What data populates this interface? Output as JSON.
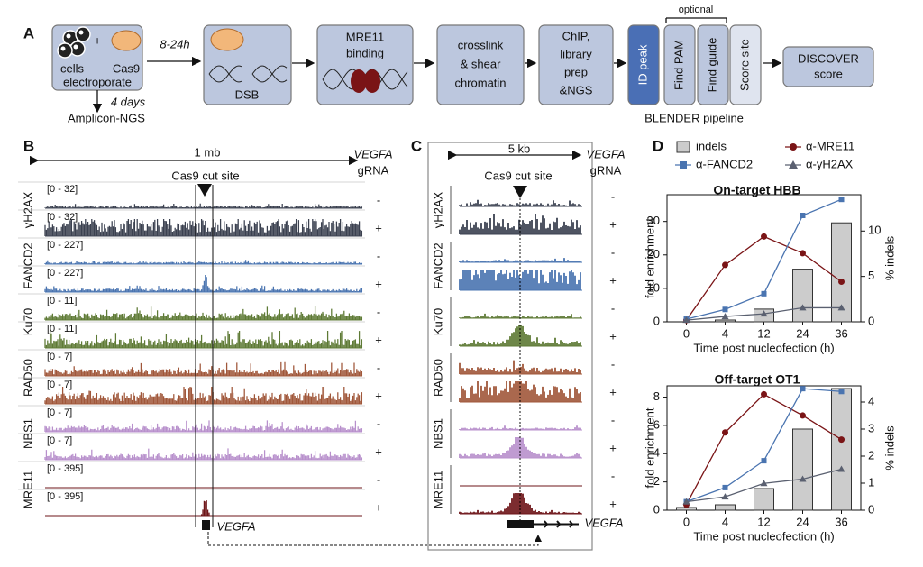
{
  "panel_a": {
    "label": "A",
    "cells": "cells",
    "plus": "+",
    "cas9": "Cas9",
    "electroporate": "electroporate",
    "time": "8-24h",
    "days": "4 days",
    "amplicon": "Amplicon-NGS",
    "dsb": "DSB",
    "mre11": [
      "MRE11",
      "binding"
    ],
    "crosslink": [
      "crosslink",
      "& shear",
      "chromatin"
    ],
    "chip": [
      "ChIP,",
      "library",
      "prep",
      "&NGS"
    ],
    "pipeline": [
      "ID peak",
      "Find PAM",
      "Find guide",
      "Score site"
    ],
    "optional": "optional",
    "blender": "BLENDER pipeline",
    "discover": [
      "DISCOVER",
      "score"
    ]
  },
  "panel_b": {
    "label": "B",
    "scale": "1 mb",
    "gene": "VEGFA",
    "grna": "gRNA",
    "cut": "Cas9 cut site",
    "gene_label": "VEGFA",
    "tracks": [
      {
        "name": "γH2AX",
        "color": "#3b4150",
        "rows": [
          {
            "range": "[0 - 32]",
            "sign": "-"
          },
          {
            "range": "[0 - 32]",
            "sign": "+"
          }
        ]
      },
      {
        "name": "FANCD2",
        "color": "#4a74b0",
        "rows": [
          {
            "range": "[0 - 227]",
            "sign": "-"
          },
          {
            "range": "[0 - 227]",
            "sign": "+"
          }
        ]
      },
      {
        "name": "Ku70",
        "color": "#5e7a35",
        "rows": [
          {
            "range": "[0 - 11]",
            "sign": "-"
          },
          {
            "range": "[0 - 11]",
            "sign": "+"
          }
        ]
      },
      {
        "name": "RAD50",
        "color": "#a0573a",
        "rows": [
          {
            "range": "[0 - 7]",
            "sign": "-"
          },
          {
            "range": "[0 - 7]",
            "sign": "+"
          }
        ]
      },
      {
        "name": "NBS1",
        "color": "#b890cc",
        "rows": [
          {
            "range": "[0 - 7]",
            "sign": "-"
          },
          {
            "range": "[0 - 7]",
            "sign": "+"
          }
        ]
      },
      {
        "name": "MRE11",
        "color": "#6e1518",
        "rows": [
          {
            "range": "[0 - 395]",
            "sign": "-"
          },
          {
            "range": "[0 - 395]",
            "sign": "+"
          }
        ]
      }
    ]
  },
  "panel_c": {
    "label": "C",
    "scale": "5 kb",
    "gene": "VEGFA",
    "grna": "gRNA",
    "cut": "Cas9 cut site",
    "gene_label": "VEGFA",
    "tracks": [
      {
        "name": "γH2AX",
        "color": "#3b4150",
        "signs": [
          "-",
          "+"
        ]
      },
      {
        "name": "FANCD2",
        "color": "#4a74b0",
        "signs": [
          "-",
          "+"
        ]
      },
      {
        "name": "Ku70",
        "color": "#5e7a35",
        "signs": [
          "-",
          "+"
        ]
      },
      {
        "name": "RAD50",
        "color": "#a0573a",
        "signs": [
          "-",
          "+"
        ]
      },
      {
        "name": "NBS1",
        "color": "#b890cc",
        "signs": [
          "-",
          "+"
        ]
      },
      {
        "name": "MRE11",
        "color": "#6e1518",
        "signs": [
          "-",
          "+"
        ]
      }
    ]
  },
  "panel_d": {
    "label": "D"
  },
  "chart_data": [
    {
      "type": "bar-line",
      "title": "On-target HBB",
      "ylabel": "fold enrichment",
      "y2label": "% indels",
      "xlabel": "Time post nucleofection (h)",
      "categories": [
        "0",
        "4",
        "12",
        "24",
        "36"
      ],
      "ylim": [
        0,
        38
      ],
      "yticks": [
        0,
        10,
        20,
        30
      ],
      "y2lim": [
        0,
        14
      ],
      "y2ticks": [
        0,
        5,
        10
      ],
      "series": [
        {
          "name": "indels",
          "color": "#cccccc",
          "marker": "bar",
          "axis": "y2",
          "values": [
            0,
            0.2,
            1.4,
            5.8,
            10.9
          ]
        },
        {
          "name": "α-MRE11",
          "color": "#7a1416",
          "marker": "circle",
          "values": [
            0.5,
            17,
            25.5,
            20.5,
            12
          ]
        },
        {
          "name": "α-FANCD2",
          "color": "#4a74b0",
          "marker": "square",
          "values": [
            0.8,
            3.7,
            8.4,
            31.8,
            36.6
          ]
        },
        {
          "name": "α-γH2AX",
          "color": "#5a6070",
          "marker": "triangle",
          "values": [
            0.5,
            1.6,
            2.4,
            4.2,
            4.2
          ]
        }
      ]
    },
    {
      "type": "bar-line",
      "title": "Off-target OT1",
      "ylabel": "fold enrichment",
      "y2label": "% indels",
      "xlabel": "Time post nucleofection (h)",
      "categories": [
        "0",
        "4",
        "12",
        "24",
        "36"
      ],
      "ylim": [
        0,
        8.8
      ],
      "yticks": [
        0,
        2,
        4,
        6,
        8
      ],
      "y2lim": [
        0,
        4.6
      ],
      "y2ticks": [
        0,
        1,
        2,
        3,
        4
      ],
      "series": [
        {
          "color": "#cccccc",
          "marker": "bar",
          "axis": "y2",
          "values": [
            0.1,
            0.2,
            0.8,
            3.0,
            4.5
          ]
        },
        {
          "color": "#7a1416",
          "marker": "circle",
          "values": [
            0.4,
            5.5,
            8.2,
            6.7,
            5.0
          ]
        },
        {
          "color": "#4a74b0",
          "marker": "square",
          "values": [
            0.6,
            1.6,
            3.5,
            8.6,
            8.4
          ]
        },
        {
          "color": "#5a6070",
          "marker": "triangle",
          "values": [
            0.6,
            0.95,
            1.9,
            2.2,
            2.9
          ]
        }
      ]
    }
  ]
}
